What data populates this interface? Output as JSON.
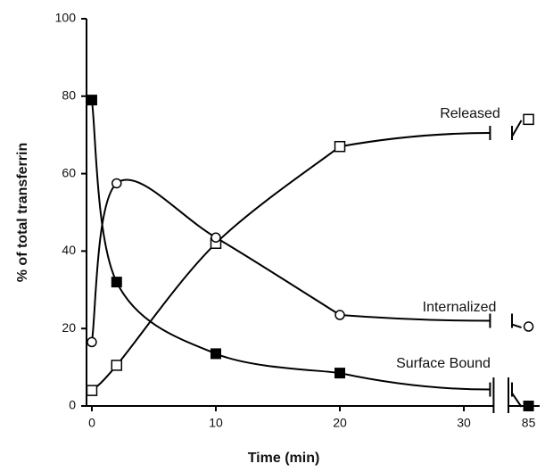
{
  "chart_data": {
    "type": "line",
    "x_label": "Time (min)",
    "y_label": "% of total transferrin",
    "x": [
      0,
      2,
      10,
      20,
      85
    ],
    "x_break": [
      32.4,
      83
    ],
    "xlim": [
      -0.4,
      32.4
    ],
    "x2lim": [
      83,
      86.5
    ],
    "xticks": [
      0,
      10,
      20,
      30,
      85
    ],
    "ylim": [
      0,
      100
    ],
    "yticks": [
      0,
      20,
      40,
      60,
      80,
      100
    ],
    "series": [
      {
        "name": "Released",
        "marker": "open-square",
        "color": "#000000",
        "values": [
          4,
          10.5,
          42,
          67,
          74
        ]
      },
      {
        "name": "Internalized",
        "marker": "open-circle",
        "color": "#000000",
        "values": [
          16.5,
          57.5,
          43.5,
          23.5,
          20.5
        ]
      },
      {
        "name": "Surface Bound",
        "marker": "filled-square",
        "color": "#000000",
        "values": [
          79,
          32,
          13.5,
          8.5,
          0
        ]
      }
    ]
  }
}
